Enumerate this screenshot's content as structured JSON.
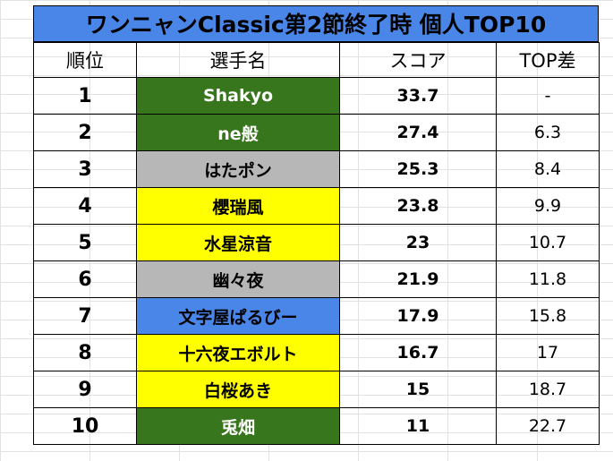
{
  "title": "ワンニャンClassic第2節終了時 個人TOP10",
  "headers": {
    "rank": "順位",
    "player": "選手名",
    "score": "スコア",
    "diff": "TOP差"
  },
  "colors": {
    "green": "#38761d",
    "gray": "#b7b7b7",
    "yellow": "#ffff00",
    "blue": "#4a86e8"
  },
  "rows": [
    {
      "rank": "1",
      "player": "Shakyo",
      "score": "33.7",
      "diff": "-",
      "color": "green"
    },
    {
      "rank": "2",
      "player": "ne般",
      "score": "27.4",
      "diff": "6.3",
      "color": "green"
    },
    {
      "rank": "3",
      "player": "はたポン",
      "score": "25.3",
      "diff": "8.4",
      "color": "gray"
    },
    {
      "rank": "4",
      "player": "櫻瑞風",
      "score": "23.8",
      "diff": "9.9",
      "color": "yellow"
    },
    {
      "rank": "5",
      "player": "水星涼音",
      "score": "23",
      "diff": "10.7",
      "color": "yellow"
    },
    {
      "rank": "6",
      "player": "幽々夜",
      "score": "21.9",
      "diff": "11.8",
      "color": "gray"
    },
    {
      "rank": "7",
      "player": "文字屋ぱるびー",
      "score": "17.9",
      "diff": "15.8",
      "color": "blue"
    },
    {
      "rank": "8",
      "player": "十六夜エボルト",
      "score": "16.7",
      "diff": "17",
      "color": "yellow"
    },
    {
      "rank": "9",
      "player": "白桜あき",
      "score": "15",
      "diff": "18.7",
      "color": "yellow"
    },
    {
      "rank": "10",
      "player": "兎畑",
      "score": "11",
      "diff": "22.7",
      "color": "green"
    }
  ]
}
